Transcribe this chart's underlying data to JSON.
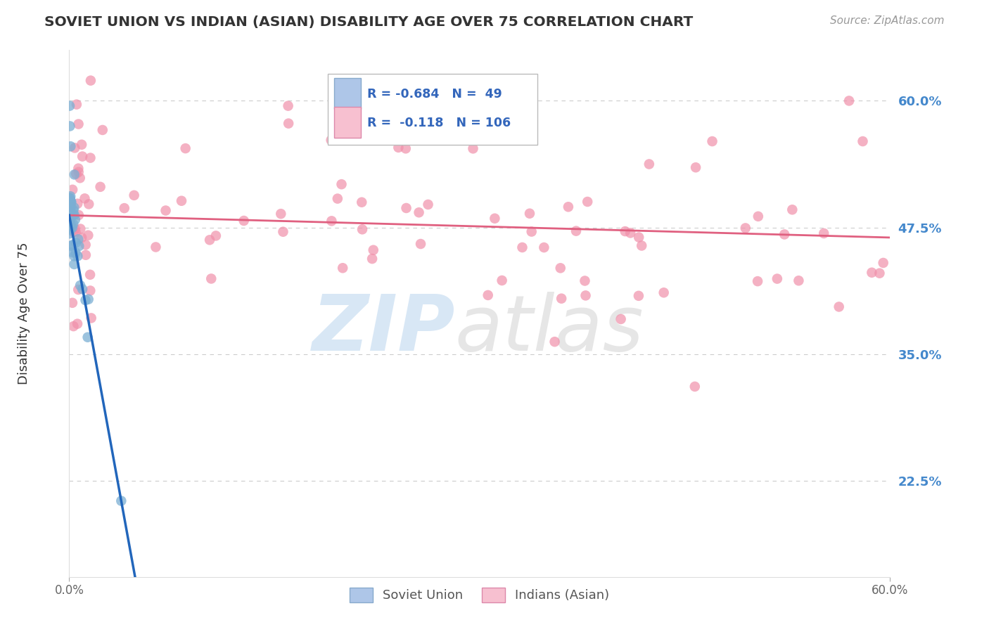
{
  "title": "SOVIET UNION VS INDIAN (ASIAN) DISABILITY AGE OVER 75 CORRELATION CHART",
  "source": "Source: ZipAtlas.com",
  "ylabel": "Disability Age Over 75",
  "xmin": 0.0,
  "xmax": 0.6,
  "ymin": 0.13,
  "ymax": 0.65,
  "yticks": [
    0.225,
    0.35,
    0.475,
    0.6
  ],
  "ytick_labels": [
    "22.5%",
    "35.0%",
    "47.5%",
    "60.0%"
  ],
  "xtick_labels": [
    "0.0%",
    "60.0%"
  ],
  "legend_su": {
    "R": -0.684,
    "N": 49,
    "box_color": "#aec6e8",
    "dot_color": "#7bafd4",
    "line_color": "#2266bb",
    "label": "Soviet Union"
  },
  "legend_in": {
    "R": -0.118,
    "N": 106,
    "box_color": "#f7c0d0",
    "dot_color": "#f090aa",
    "line_color": "#e06080",
    "label": "Indians (Asian)"
  },
  "background_color": "#ffffff",
  "grid_color": "#cccccc",
  "title_color": "#333333",
  "source_color": "#999999",
  "ytick_color": "#4488cc",
  "watermark_zip_color": "#b8d4ee",
  "watermark_atlas_color": "#c8c8c8",
  "su_line_x0": 0.0,
  "su_line_y0": 0.487,
  "su_line_x1": 0.038,
  "su_line_y1": 0.205,
  "in_line_x0": 0.0,
  "in_line_y0": 0.487,
  "in_line_x1": 0.6,
  "in_line_y1": 0.465
}
